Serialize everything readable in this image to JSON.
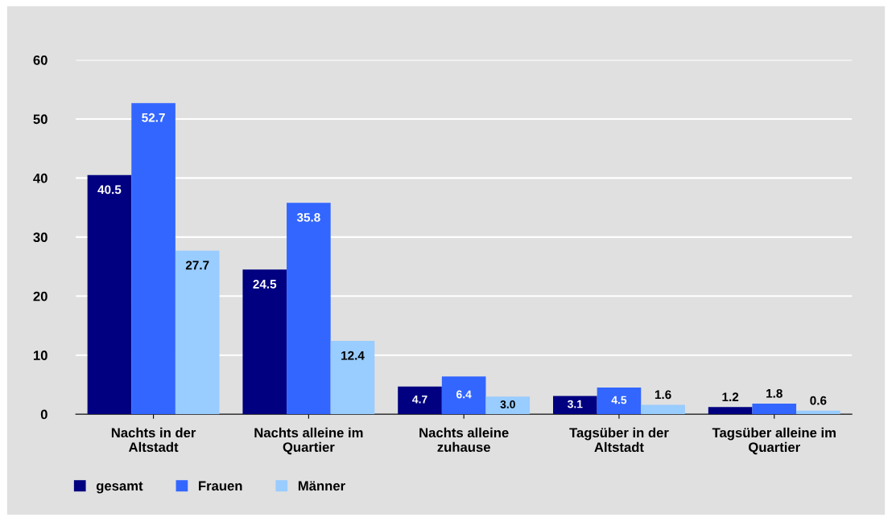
{
  "chart_data": {
    "type": "bar",
    "categories": [
      "Nachts in der\nAltstadt",
      "Nachts alleine im\nQuartier",
      "Nachts alleine\nzuhause",
      "Tagsüber in der\nAltstadt",
      "Tagsüber alleine im\nQuartier"
    ],
    "series": [
      {
        "name": "gesamt",
        "color": "#000080",
        "values": [
          40.5,
          24.5,
          4.7,
          3.1,
          1.2
        ],
        "value_labels": [
          "40.5",
          "24.5",
          "4.7",
          "3.1",
          "1.2"
        ]
      },
      {
        "name": "Frauen",
        "color": "#3366ff",
        "values": [
          52.7,
          35.8,
          6.4,
          4.5,
          1.8
        ],
        "value_labels": [
          "52.7",
          "35.8",
          "6.4",
          "4.5",
          "1.8"
        ]
      },
      {
        "name": "Männer",
        "color": "#99ccff",
        "values": [
          27.7,
          12.4,
          3.0,
          1.6,
          0.6
        ],
        "value_labels": [
          "27.7",
          "12.4",
          "3.0",
          "1.6",
          "0.6"
        ]
      }
    ],
    "ylim": [
      0,
      60
    ],
    "yticks": [
      0,
      10,
      20,
      30,
      40,
      50,
      60
    ],
    "grid": "y",
    "legend": "bottom"
  }
}
